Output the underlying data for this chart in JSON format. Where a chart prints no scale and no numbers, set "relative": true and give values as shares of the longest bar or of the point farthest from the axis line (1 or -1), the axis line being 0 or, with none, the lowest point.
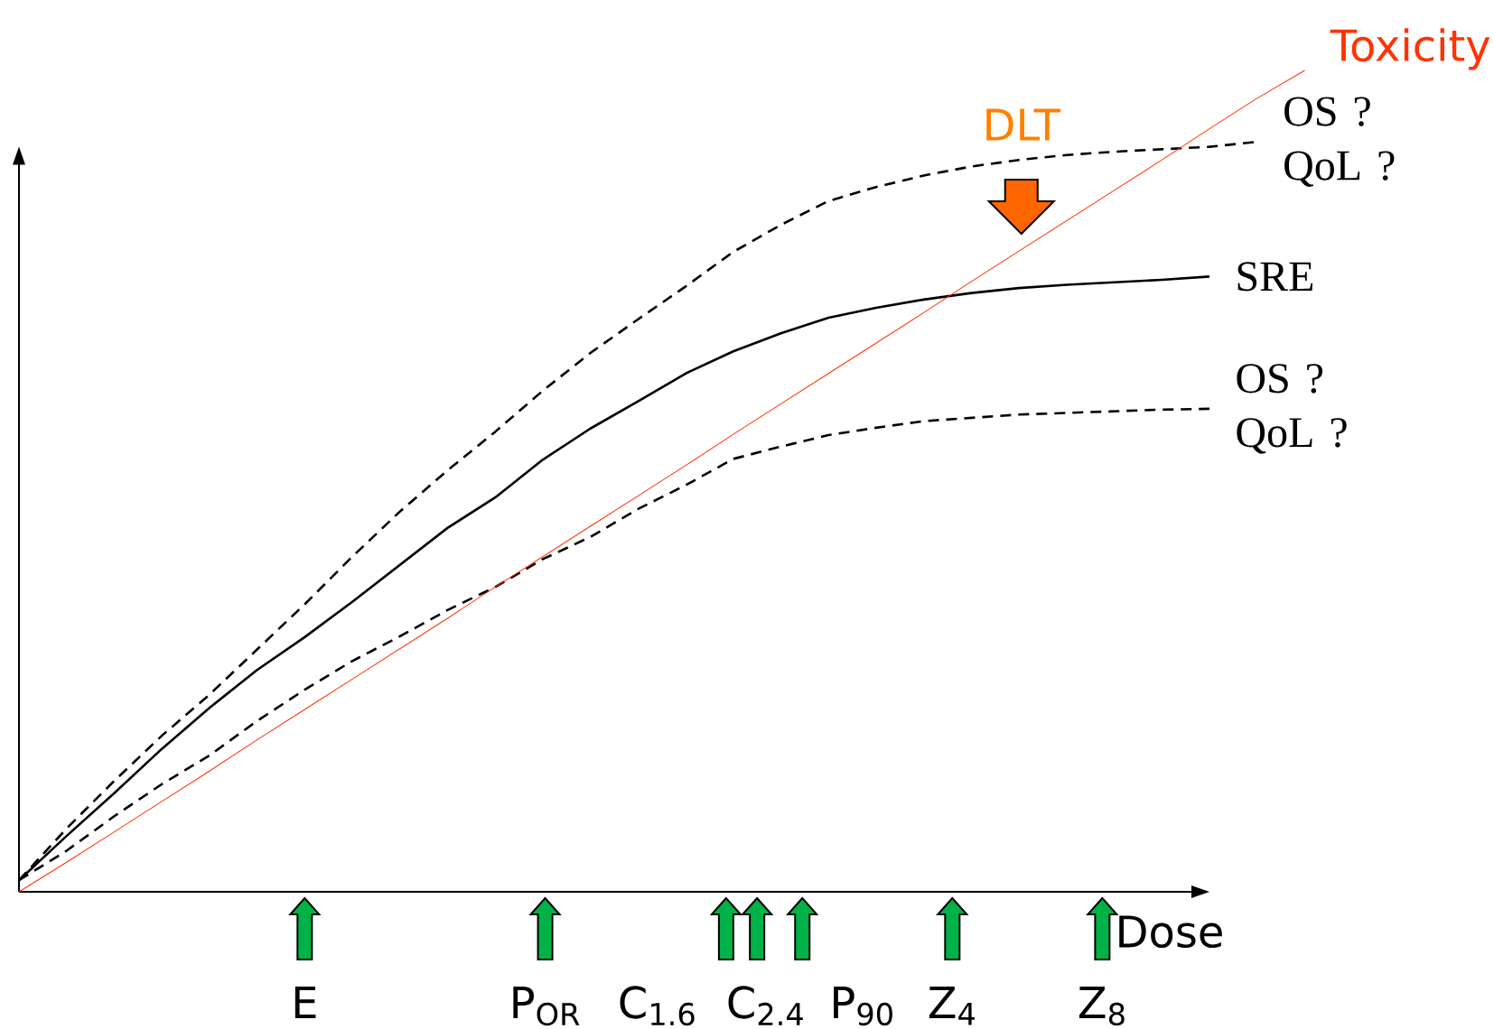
{
  "chart_data": {
    "type": "line",
    "relative": true,
    "xlabel": "Dose",
    "categories": [
      null,
      null,
      null,
      null,
      null,
      null,
      null,
      null,
      null,
      null,
      null,
      null,
      null,
      null,
      null,
      null,
      null,
      null,
      null,
      null,
      null,
      null,
      null,
      null,
      null,
      null,
      null,
      null
    ],
    "series": [
      {
        "name": "OS ? QoL ?",
        "color": "#000000",
        "line_style": "dashed",
        "values": [
          0.014,
          0.077,
          0.135,
          0.19,
          0.24,
          0.295,
          0.35,
          0.408,
          0.463,
          0.513,
          0.56,
          0.61,
          0.656,
          0.697,
          0.737,
          0.779,
          0.812,
          0.841,
          0.858,
          0.872,
          0.883,
          0.891,
          0.897,
          0.901,
          0.904,
          0.907,
          0.913,
          null
        ]
      },
      {
        "name": "SRE",
        "color": "#000000",
        "line_style": "solid",
        "values": [
          0.014,
          0.068,
          0.12,
          0.174,
          0.224,
          0.27,
          0.31,
          0.353,
          0.398,
          0.443,
          0.48,
          0.526,
          0.564,
          0.597,
          0.631,
          0.658,
          0.68,
          0.699,
          0.711,
          0.721,
          0.729,
          0.735,
          0.739,
          0.742,
          0.745,
          0.749,
          null,
          null
        ]
      },
      {
        "name": "OS ? QoL ?",
        "color": "#000000",
        "line_style": "dashed",
        "values": [
          0.014,
          0.05,
          0.092,
          0.131,
          0.166,
          0.208,
          0.246,
          0.281,
          0.311,
          0.343,
          0.371,
          0.405,
          0.432,
          0.466,
          0.495,
          0.527,
          0.542,
          0.556,
          0.565,
          0.573,
          0.577,
          0.581,
          0.583,
          0.585,
          0.587,
          0.588,
          null,
          null
        ]
      },
      {
        "name": "Toxicity",
        "color": "#ff3300",
        "line_style": "solid",
        "values": [
          0.0,
          0.036,
          0.073,
          0.11,
          0.147,
          0.185,
          0.222,
          0.259,
          0.296,
          0.333,
          0.371,
          0.408,
          0.445,
          0.482,
          0.519,
          0.557,
          0.594,
          0.631,
          0.668,
          0.705,
          0.743,
          0.78,
          0.817,
          0.854,
          0.891,
          0.929,
          0.966,
          1.0
        ]
      }
    ],
    "annotations": [
      "E",
      "P$_{OR}$",
      "C$_{1.6}$",
      "C$_{2.4}$",
      "P$_{90}$",
      "Z$_{4}$",
      "Z$_{8}$",
      "DLT"
    ]
  }
}
